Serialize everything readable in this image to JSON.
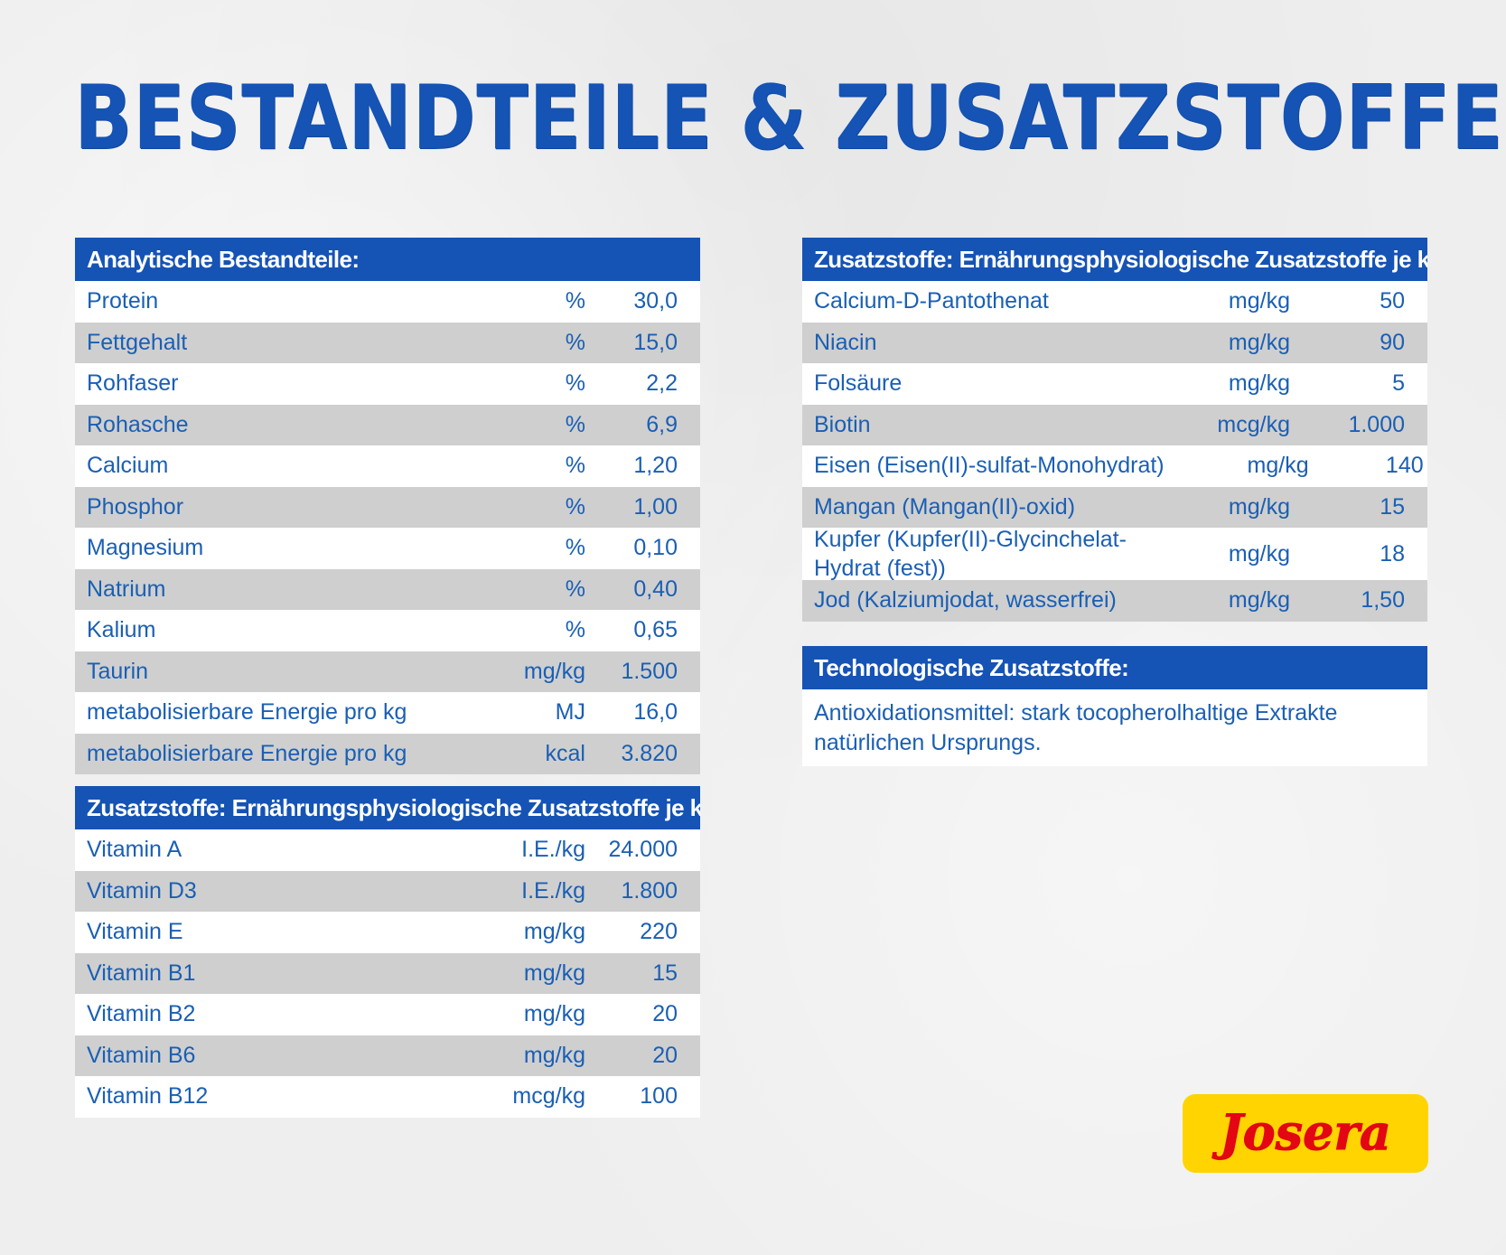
{
  "title": "BESTANDTEILE & ZUSATZSTOFFE",
  "analytical": {
    "header": "Analytische Bestandteile:",
    "rows": [
      {
        "name": "Protein",
        "unit": "%",
        "value": "30,0"
      },
      {
        "name": "Fettgehalt",
        "unit": "%",
        "value": "15,0"
      },
      {
        "name": "Rohfaser",
        "unit": "%",
        "value": "2,2"
      },
      {
        "name": "Rohasche",
        "unit": "%",
        "value": "6,9"
      },
      {
        "name": "Calcium",
        "unit": "%",
        "value": "1,20"
      },
      {
        "name": "Phosphor",
        "unit": "%",
        "value": "1,00"
      },
      {
        "name": "Magnesium",
        "unit": "%",
        "value": "0,10"
      },
      {
        "name": "Natrium",
        "unit": "%",
        "value": "0,40"
      },
      {
        "name": "Kalium",
        "unit": "%",
        "value": "0,65"
      },
      {
        "name": "Taurin",
        "unit": "mg/kg",
        "value": "1.500"
      },
      {
        "name": "metabolisierbare Energie pro kg",
        "unit": "MJ",
        "value": "16,0"
      },
      {
        "name": "metabolisierbare Energie pro kg",
        "unit": "kcal",
        "value": "3.820"
      }
    ]
  },
  "vitamins": {
    "header": "Zusatzstoffe: Ernährungsphysiologische Zusatzstoffe je kg:",
    "rows": [
      {
        "name": "Vitamin A",
        "unit": "I.E./kg",
        "value": "24.000"
      },
      {
        "name": "Vitamin D3",
        "unit": "I.E./kg",
        "value": "1.800"
      },
      {
        "name": "Vitamin E",
        "unit": "mg/kg",
        "value": "220"
      },
      {
        "name": "Vitamin B1",
        "unit": "mg/kg",
        "value": "15"
      },
      {
        "name": "Vitamin B2",
        "unit": "mg/kg",
        "value": "20"
      },
      {
        "name": "Vitamin B6",
        "unit": "mg/kg",
        "value": "20"
      },
      {
        "name": "Vitamin B12",
        "unit": "mcg/kg",
        "value": "100"
      }
    ]
  },
  "minerals": {
    "header": "Zusatzstoffe: Ernährungsphysiologische Zusatzstoffe je kg:",
    "rows": [
      {
        "name": "Calcium-D-Pantothenat",
        "unit": "mg/kg",
        "value": "50"
      },
      {
        "name": "Niacin",
        "unit": "mg/kg",
        "value": "90"
      },
      {
        "name": "Folsäure",
        "unit": "mg/kg",
        "value": "5"
      },
      {
        "name": "Biotin",
        "unit": "mcg/kg",
        "value": "1.000"
      },
      {
        "name": "Eisen (Eisen(II)-sulfat-Monohydrat)",
        "unit": "mg/kg",
        "value": "140"
      },
      {
        "name": "Mangan (Mangan(II)-oxid)",
        "unit": "mg/kg",
        "value": "15"
      },
      {
        "name": "Kupfer (Kupfer(II)-Glycinchelat-Hydrat (fest))",
        "unit": "mg/kg",
        "value": "18"
      },
      {
        "name": "Jod (Kalziumjodat, wasserfrei)",
        "unit": "mg/kg",
        "value": "1,50"
      }
    ]
  },
  "technological": {
    "header": "Technologische Zusatzstoffe:",
    "text": "Antioxidationsmittel: stark tocopherolhaltige Extrakte natürlichen Ursprungs."
  },
  "logo": {
    "text": "Josera"
  },
  "colors": {
    "brand_blue": "#1553b5",
    "text_blue": "#1a5fb4",
    "row_grey": "#cfcfcf",
    "row_white": "#ffffff",
    "logo_yellow": "#ffd400",
    "logo_red": "#e30613"
  }
}
